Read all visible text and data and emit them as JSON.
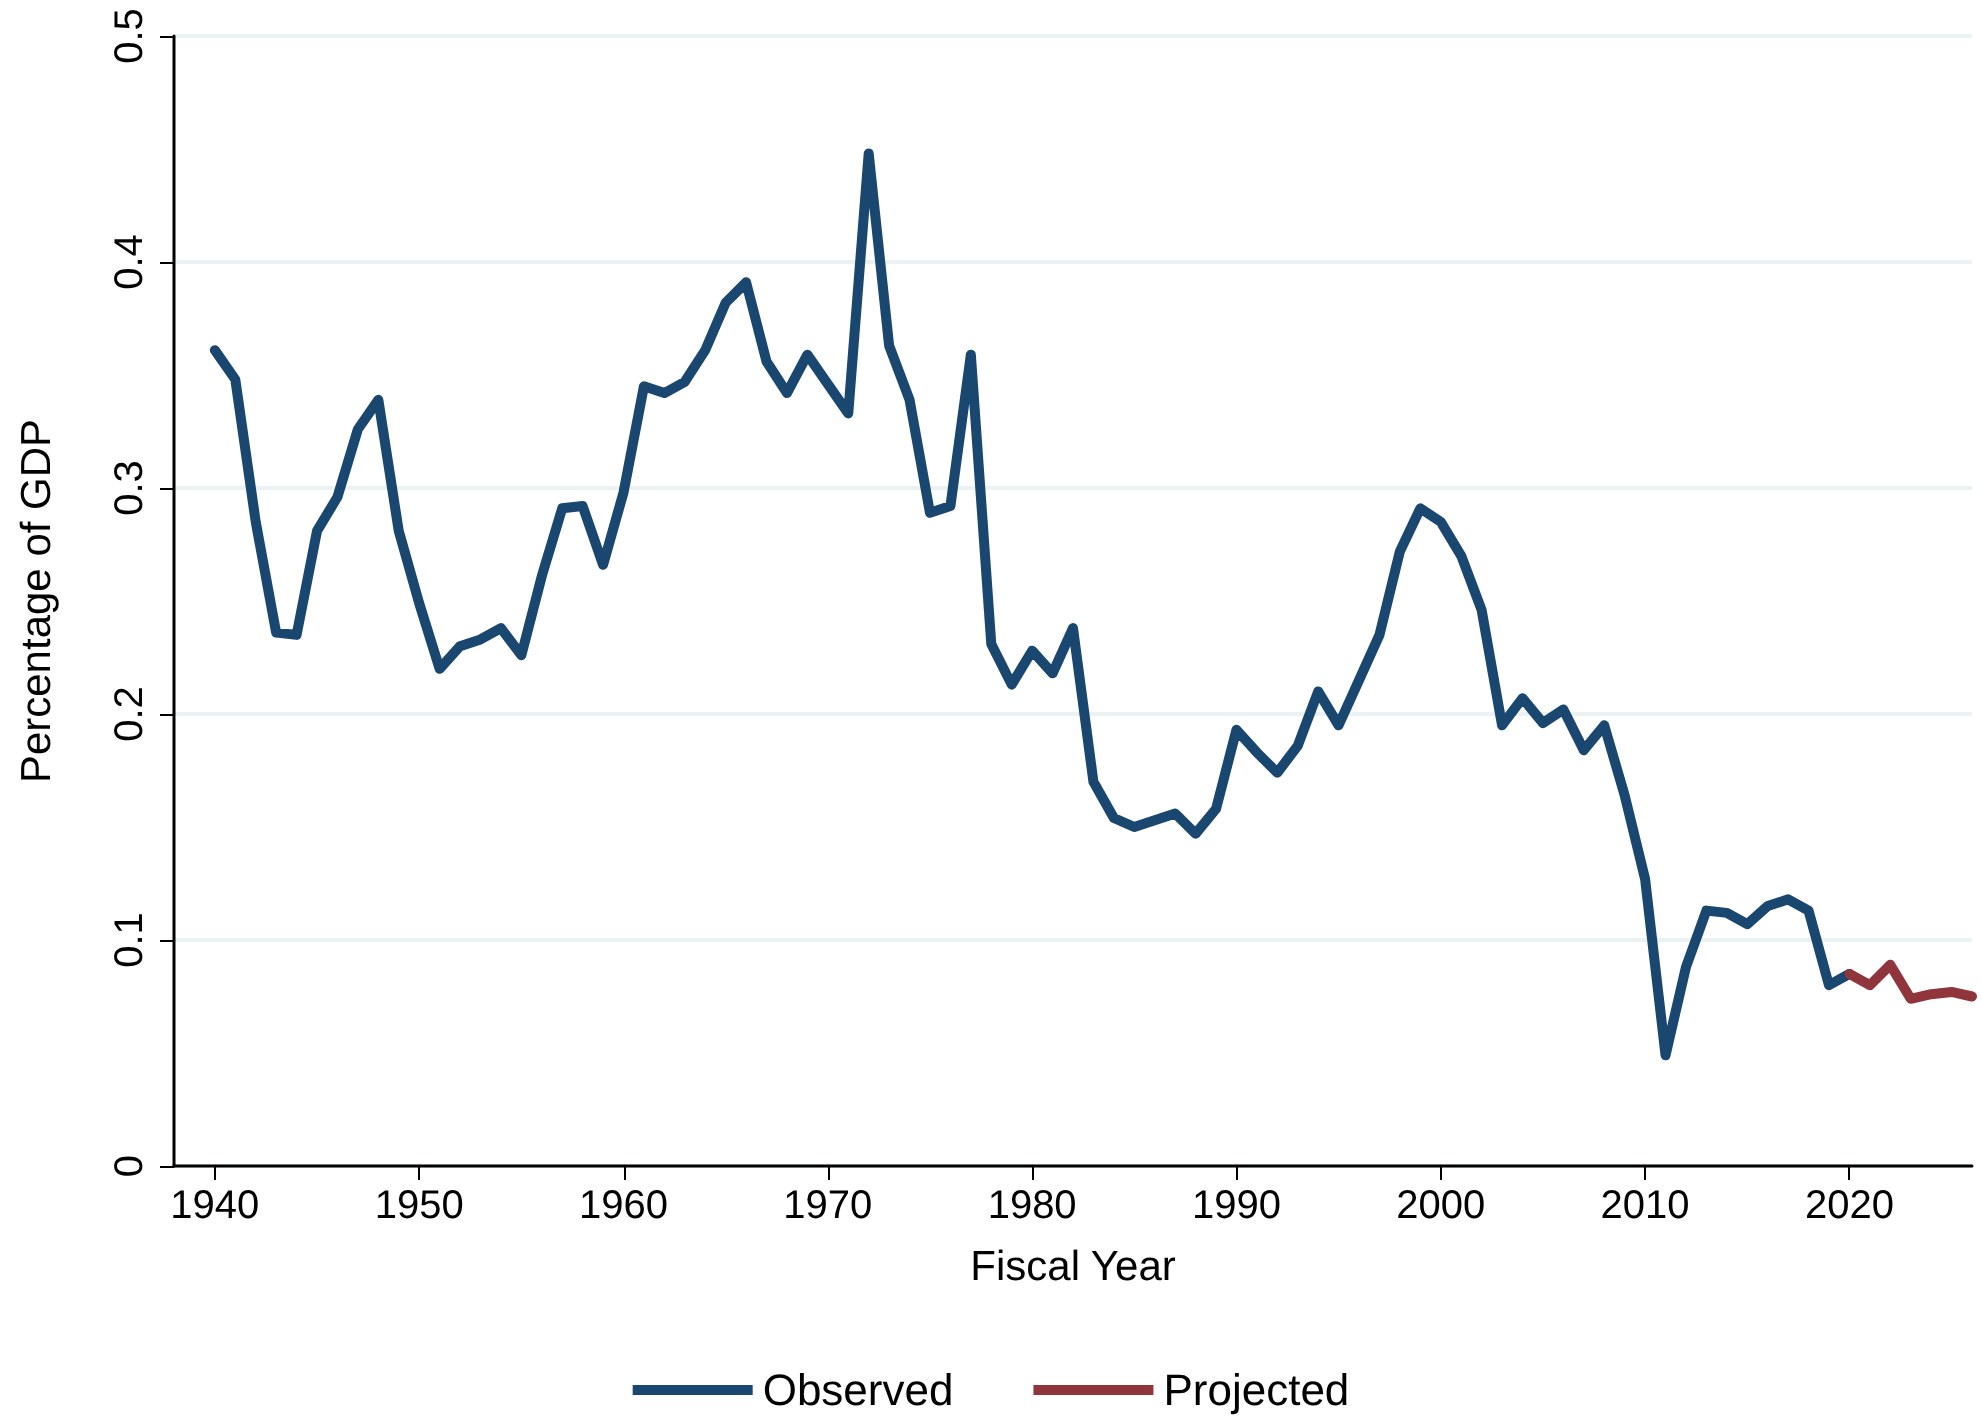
{
  "chart_data": {
    "type": "line",
    "xlabel": "Fiscal Year",
    "ylabel": "Percentage of GDP",
    "xlim": [
      1938,
      2026
    ],
    "xticks": [
      1940,
      1950,
      1960,
      1970,
      1980,
      1990,
      2000,
      2010,
      2020
    ],
    "ylim": [
      0,
      0.5
    ],
    "yticks": [
      0,
      0.1,
      0.2,
      0.3,
      0.4,
      0.5
    ],
    "grid": "y",
    "legend": "bottom",
    "marker": "none",
    "line_style": "solid",
    "series": [
      {
        "name": "Observed",
        "color": "#1a476f",
        "x": [
          1940,
          1941,
          1942,
          1943,
          1944,
          1945,
          1946,
          1947,
          1948,
          1949,
          1950,
          1951,
          1952,
          1953,
          1954,
          1955,
          1956,
          1957,
          1958,
          1959,
          1960,
          1961,
          1962,
          1963,
          1964,
          1965,
          1966,
          1967,
          1968,
          1969,
          1970,
          1971,
          1972,
          1973,
          1974,
          1975,
          1976,
          1977,
          1978,
          1979,
          1980,
          1981,
          1982,
          1983,
          1984,
          1985,
          1986,
          1987,
          1988,
          1989,
          1990,
          1991,
          1992,
          1993,
          1994,
          1995,
          1996,
          1997,
          1998,
          1999,
          2000,
          2001,
          2002,
          2003,
          2004,
          2005,
          2006,
          2007,
          2008,
          2009,
          2010,
          2011,
          2012,
          2013,
          2014,
          2015,
          2016,
          2017,
          2018,
          2019,
          2020
        ],
        "values": [
          0.361,
          0.348,
          0.285,
          0.236,
          0.235,
          0.281,
          0.296,
          0.326,
          0.339,
          0.281,
          0.249,
          0.22,
          0.23,
          0.233,
          0.238,
          0.226,
          0.261,
          0.291,
          0.292,
          0.266,
          0.298,
          0.345,
          0.342,
          0.347,
          0.361,
          0.382,
          0.391,
          0.356,
          0.342,
          0.359,
          0.346,
          0.333,
          0.448,
          0.363,
          0.339,
          0.289,
          0.292,
          0.359,
          0.231,
          0.213,
          0.228,
          0.218,
          0.238,
          0.17,
          0.154,
          0.15,
          0.153,
          0.156,
          0.147,
          0.158,
          0.193,
          0.183,
          0.174,
          0.186,
          0.21,
          0.195,
          0.215,
          0.235,
          0.272,
          0.291,
          0.285,
          0.27,
          0.246,
          0.195,
          0.207,
          0.196,
          0.202,
          0.184,
          0.195,
          0.164,
          0.127,
          0.049,
          0.088,
          0.113,
          0.112,
          0.107,
          0.115,
          0.118,
          0.113,
          0.08,
          0.085
        ]
      },
      {
        "name": "Projected",
        "color": "#90353b",
        "x": [
          2020,
          2021,
          2022,
          2023,
          2024,
          2025,
          2026
        ],
        "values": [
          0.085,
          0.08,
          0.089,
          0.074,
          0.076,
          0.077,
          0.075
        ]
      }
    ]
  }
}
